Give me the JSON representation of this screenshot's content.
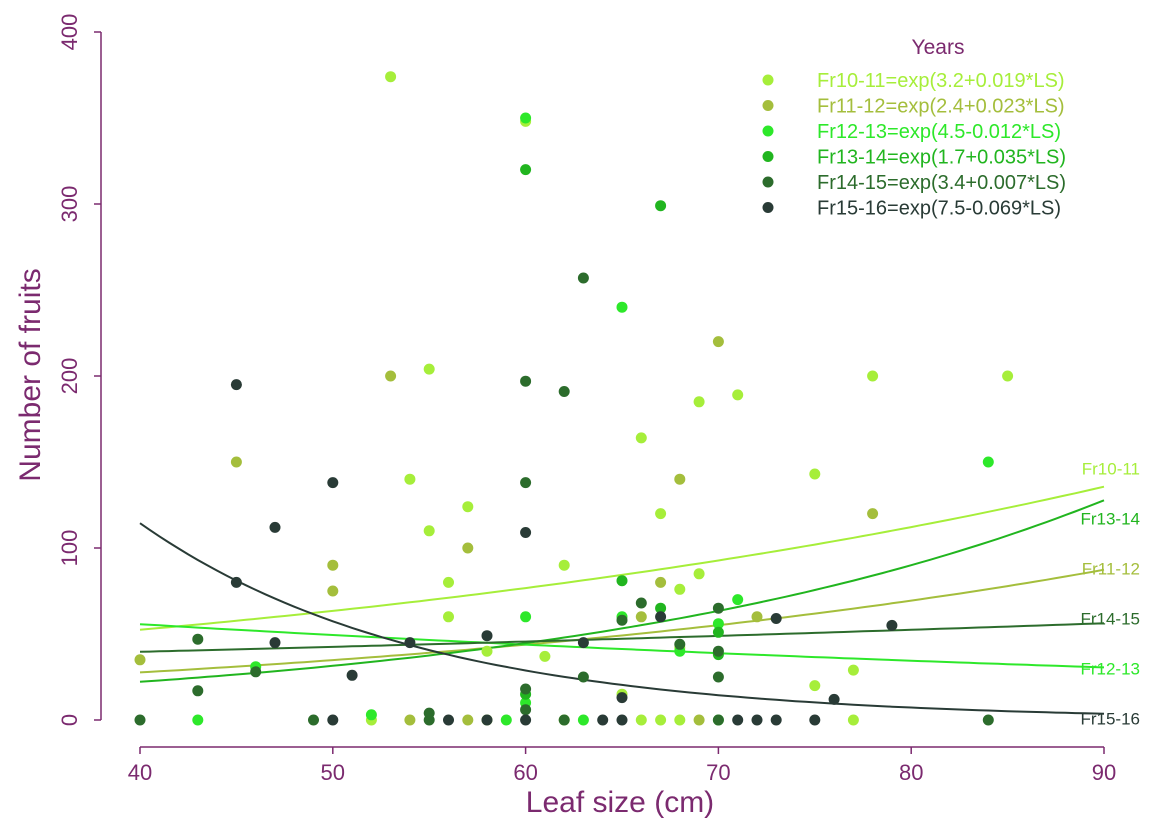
{
  "chart_data": {
    "type": "scatter",
    "xlabel": "Leaf size (cm)",
    "ylabel": "Number of fruits",
    "xlim": [
      40,
      90
    ],
    "ylim": [
      0,
      400
    ],
    "xticks": [
      "40",
      "50",
      "60",
      "70",
      "80",
      "90"
    ],
    "yticks": [
      "0",
      "100",
      "200",
      "300",
      "400"
    ],
    "legend": {
      "title": "Years",
      "position": "top-right"
    },
    "series": [
      {
        "name": "Fr10-11=exp(3.2+0.019*LS)",
        "curve_label": "Fr10-11",
        "color": "#a6ee3a",
        "fit": {
          "a": 3.2,
          "b": 0.019
        },
        "points": [
          [
            53,
            374
          ],
          [
            60,
            348
          ],
          [
            55,
            204
          ],
          [
            69,
            185
          ],
          [
            71,
            189
          ],
          [
            78,
            200
          ],
          [
            85,
            200
          ],
          [
            66,
            164
          ],
          [
            54,
            140
          ],
          [
            57,
            124
          ],
          [
            55,
            110
          ],
          [
            67,
            120
          ],
          [
            75,
            143
          ],
          [
            56,
            80
          ],
          [
            62,
            90
          ],
          [
            69,
            85
          ],
          [
            56,
            60
          ],
          [
            68,
            76
          ],
          [
            58,
            40
          ],
          [
            61,
            37
          ],
          [
            68,
            42
          ],
          [
            65,
            15
          ],
          [
            75,
            20
          ],
          [
            77,
            29
          ],
          [
            52,
            0
          ],
          [
            58,
            0
          ],
          [
            62,
            0
          ],
          [
            66,
            0
          ],
          [
            67,
            0
          ],
          [
            68,
            0
          ],
          [
            77,
            0
          ]
        ]
      },
      {
        "name": "Fr11-12=exp(2.4+0.023*LS)",
        "curve_label": "Fr11-12",
        "color": "#a4be3c",
        "fit": {
          "a": 2.4,
          "b": 0.023
        },
        "points": [
          [
            53,
            200
          ],
          [
            70,
            220
          ],
          [
            45,
            150
          ],
          [
            68,
            140
          ],
          [
            78,
            120
          ],
          [
            50,
            90
          ],
          [
            57,
            100
          ],
          [
            50,
            75
          ],
          [
            67,
            80
          ],
          [
            66,
            60
          ],
          [
            72,
            60
          ],
          [
            40,
            35
          ],
          [
            54,
            0
          ],
          [
            57,
            0
          ],
          [
            69,
            0
          ]
        ]
      },
      {
        "name": "Fr12-13=exp(4.5-0.012*LS)",
        "curve_label": "Fr12-13",
        "color": "#2de82a",
        "fit": {
          "a": 4.5,
          "b": -0.012
        },
        "points": [
          [
            60,
            350
          ],
          [
            65,
            240
          ],
          [
            84,
            150
          ],
          [
            60,
            60
          ],
          [
            71,
            70
          ],
          [
            70,
            56
          ],
          [
            65,
            60
          ],
          [
            68,
            40
          ],
          [
            46,
            31
          ],
          [
            52,
            3
          ],
          [
            43,
            0
          ],
          [
            59,
            0
          ],
          [
            60,
            10
          ],
          [
            63,
            0
          ],
          [
            70,
            0
          ]
        ]
      },
      {
        "name": "Fr13-14=exp(1.7+0.035*LS)",
        "curve_label": "Fr13-14",
        "color": "#21b51f",
        "fit": {
          "a": 1.7,
          "b": 0.035
        },
        "points": [
          [
            60,
            320
          ],
          [
            67,
            299
          ],
          [
            65,
            81
          ],
          [
            67,
            65
          ],
          [
            70,
            51
          ],
          [
            70,
            38
          ],
          [
            60,
            15
          ]
        ]
      },
      {
        "name": "Fr14-15=exp(3.4+0.007*LS)",
        "curve_label": "Fr14-15",
        "color": "#2c6c2c",
        "fit": {
          "a": 3.4,
          "b": 0.007
        },
        "points": [
          [
            63,
            257
          ],
          [
            60,
            197
          ],
          [
            62,
            191
          ],
          [
            60,
            138
          ],
          [
            66,
            68
          ],
          [
            70,
            65
          ],
          [
            68,
            44
          ],
          [
            70,
            40
          ],
          [
            70,
            25
          ],
          [
            65,
            58
          ],
          [
            43,
            47
          ],
          [
            43,
            17
          ],
          [
            46,
            28
          ],
          [
            55,
            4
          ],
          [
            60,
            18
          ],
          [
            60,
            6
          ],
          [
            63,
            25
          ],
          [
            40,
            0
          ],
          [
            49,
            0
          ],
          [
            55,
            0
          ],
          [
            62,
            0
          ],
          [
            70,
            0
          ],
          [
            84,
            0
          ]
        ]
      },
      {
        "name": "Fr15-16=exp(7.5-0.069*LS)",
        "curve_label": "Fr15-16",
        "color": "#293b36",
        "fit": {
          "a": 7.5,
          "b": -0.069
        },
        "points": [
          [
            45,
            195
          ],
          [
            50,
            138
          ],
          [
            47,
            112
          ],
          [
            60,
            109
          ],
          [
            45,
            80
          ],
          [
            47,
            45
          ],
          [
            54,
            45
          ],
          [
            58,
            49
          ],
          [
            63,
            45
          ],
          [
            67,
            60
          ],
          [
            73,
            59
          ],
          [
            79,
            55
          ],
          [
            51,
            26
          ],
          [
            65,
            13
          ],
          [
            76,
            12
          ],
          [
            50,
            0
          ],
          [
            56,
            0
          ],
          [
            58,
            0
          ],
          [
            60,
            0
          ],
          [
            64,
            0
          ],
          [
            65,
            0
          ],
          [
            71,
            0
          ],
          [
            72,
            0
          ],
          [
            73,
            0
          ],
          [
            75,
            0
          ]
        ]
      }
    ]
  }
}
